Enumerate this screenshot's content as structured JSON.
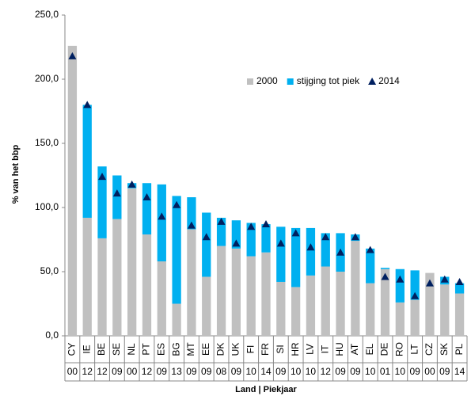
{
  "chart_data": {
    "type": "bar",
    "y_label": "% van het bbp",
    "x_label": "Land | Piekjaar",
    "categories": [
      "CY",
      "IE",
      "BE",
      "SE",
      "NL",
      "PT",
      "ES",
      "BG",
      "MT",
      "EE",
      "DK",
      "UK",
      "FI",
      "FR",
      "SI",
      "HR",
      "LV",
      "IT",
      "HU",
      "AT",
      "EL",
      "DE",
      "RO",
      "LT",
      "CZ",
      "SK",
      "PL"
    ],
    "peak_years": [
      "00",
      "12",
      "12",
      "09",
      "00",
      "12",
      "09",
      "13",
      "09",
      "09",
      "08",
      "09",
      "10",
      "14",
      "09",
      "10",
      "10",
      "12",
      "09",
      "09",
      "10",
      "01",
      "10",
      "09",
      "00",
      "09",
      "14"
    ],
    "series": [
      {
        "name": "2000",
        "color": "#c0c0c0",
        "values": [
          226,
          92,
          76,
          91,
          115,
          79,
          58,
          25,
          83,
          46,
          70,
          68,
          62,
          65,
          42,
          38,
          47,
          54,
          50,
          74,
          41,
          52,
          26,
          28,
          49,
          40,
          33
        ]
      },
      {
        "name": "stijging tot piek",
        "color": "#00b0f0",
        "values": [
          0,
          88,
          56,
          34,
          4,
          40,
          60,
          84,
          25,
          50,
          22,
          22,
          26,
          22,
          43,
          46,
          37,
          26,
          30,
          5,
          27,
          1,
          26,
          23,
          0,
          6,
          8
        ]
      },
      {
        "name": "2014",
        "color": "#002060",
        "marker": "triangle",
        "values": [
          218,
          180,
          124,
          111,
          118,
          108,
          93,
          102,
          86,
          77,
          89,
          72,
          85,
          87,
          72,
          80,
          69,
          77,
          65,
          77,
          67,
          46,
          44,
          31,
          41,
          44,
          42
        ]
      }
    ],
    "stacked_series": [
      0,
      1
    ],
    "ylim": [
      0,
      250
    ],
    "yticks": [
      {
        "value": 0,
        "label": "0,0"
      },
      {
        "value": 50,
        "label": "50,0"
      },
      {
        "value": 100,
        "label": "100,0"
      },
      {
        "value": 150,
        "label": "150,0"
      },
      {
        "value": 200,
        "label": "200,0"
      },
      {
        "value": 250,
        "label": "250,0"
      }
    ],
    "legend": "top-right",
    "grid": false
  }
}
